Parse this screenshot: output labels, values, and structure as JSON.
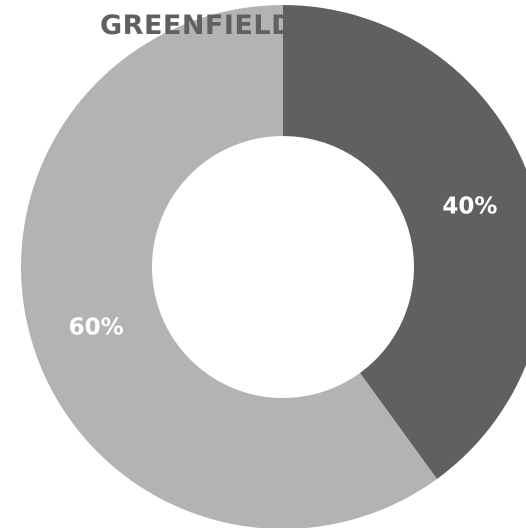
{
  "chart_data": {
    "type": "pie",
    "title": "GREENFIELD",
    "slices": [
      {
        "label": "40%",
        "value": 40,
        "color": "#606060"
      },
      {
        "label": "60%",
        "value": 60,
        "color": "#b3b3b3"
      }
    ],
    "donut": true,
    "legend": "none"
  }
}
